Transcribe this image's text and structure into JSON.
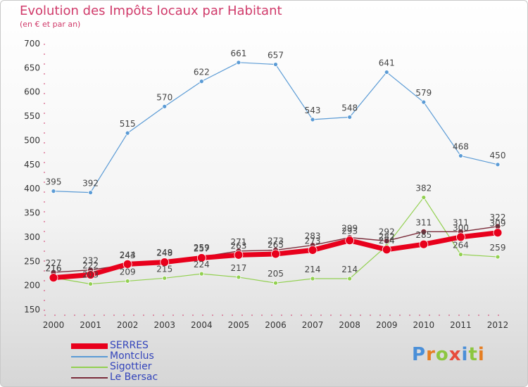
{
  "title": "Evolution des Impôts locaux par Habitant",
  "subtitle": "(en € et par an)",
  "logo": {
    "text": "Proxiti",
    "letter_colors": [
      "#4a8fd8",
      "#e67e22",
      "#8cc63f",
      "#e74c3c",
      "#4a8fd8",
      "#8cc63f",
      "#e67e22"
    ]
  },
  "chart_data": {
    "type": "line",
    "title": "Evolution des Impôts locaux par Habitant",
    "subtitle": "(en € et par an)",
    "x": [
      "2000",
      "2001",
      "2002",
      "2003",
      "2004",
      "2005",
      "2006",
      "2007",
      "2008",
      "2009",
      "2010",
      "2011",
      "2012"
    ],
    "ylim": [
      150,
      700
    ],
    "yticks": [
      150,
      200,
      250,
      300,
      350,
      400,
      450,
      500,
      550,
      600,
      650,
      700
    ],
    "grid": false,
    "legend_position": "bottom-left",
    "series": [
      {
        "name": "Montclus",
        "color": "#5b9bd5",
        "values": [
          395,
          392,
          515,
          570,
          622,
          661,
          657,
          543,
          548,
          641,
          579,
          468,
          450
        ]
      },
      {
        "name": "Sigottier",
        "color": "#92d050",
        "values": [
          216,
          203,
          209,
          215,
          224,
          217,
          205,
          214,
          214,
          282,
          382,
          264,
          259
        ]
      },
      {
        "name": "Le Bersac",
        "color": "#7b2c3a",
        "values": [
          227,
          232,
          243,
          249,
          259,
          271,
          273,
          283,
          299,
          292,
          311,
          311,
          322
        ]
      },
      {
        "name": "SERRES",
        "color": "#e8001c",
        "values": [
          216,
          222,
          244,
          248,
          257,
          263,
          265,
          273,
          293,
          274,
          285,
          300,
          309
        ]
      }
    ],
    "legend_order": [
      "SERRES",
      "Montclus",
      "Sigottier",
      "Le Bersac"
    ]
  }
}
